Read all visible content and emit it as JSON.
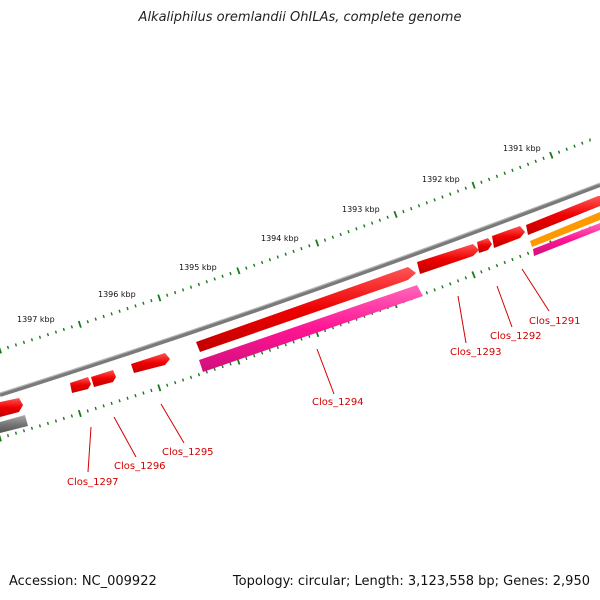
{
  "title": "Alkaliphilus oremlandii OhILAs, complete genome",
  "footer": {
    "accession": "Accession: NC_009922",
    "summary": "Topology: circular; Length: 3,123,558 bp; Genes: 2,950"
  },
  "colors": {
    "backbone": "#808080",
    "gene_fwd": "#ee0000",
    "gene_rev": "#ff1493",
    "gene_other": "#ff9900",
    "tick": "#1a7a1a",
    "label": "#d40000"
  },
  "scale_labels": [
    "1391 kbp",
    "1392 kbp",
    "1393 kbp",
    "1394 kbp",
    "1395 kbp",
    "1396 kbp",
    "1397 kbp"
  ],
  "gene_labels": [
    "Clos_1291",
    "Clos_1292",
    "Clos_1293",
    "Clos_1294",
    "Clos_1295",
    "Clos_1296",
    "Clos_1297"
  ]
}
